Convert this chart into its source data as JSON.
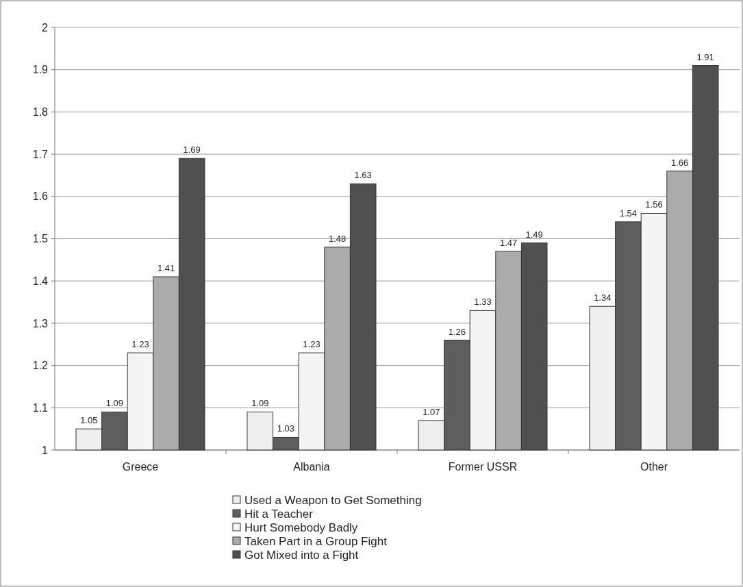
{
  "chart_data": {
    "type": "bar",
    "categories": [
      "Greece",
      "Albania",
      "Former USSR",
      "Other"
    ],
    "series": [
      {
        "name": "Used a Weapon to Get Something",
        "color": "#eeeeee",
        "values": [
          1.05,
          1.09,
          1.07,
          1.34
        ]
      },
      {
        "name": "Hit a Teacher",
        "color": "#5e5e5e",
        "values": [
          1.09,
          1.03,
          1.26,
          1.54
        ]
      },
      {
        "name": "Hurt Somebody Badly",
        "color": "#f4f4f4",
        "values": [
          1.23,
          1.23,
          1.33,
          1.56
        ]
      },
      {
        "name": "Taken Part in a Group Fight",
        "color": "#ababab",
        "values": [
          1.41,
          1.48,
          1.47,
          1.66
        ]
      },
      {
        "name": "Got Mixed into a Fight",
        "color": "#505050",
        "values": [
          1.69,
          1.63,
          1.49,
          1.91
        ]
      }
    ],
    "ylim": [
      1,
      2
    ],
    "yticks": [
      1,
      1.1,
      1.2,
      1.3,
      1.4,
      1.5,
      1.6,
      1.7,
      1.8,
      1.9,
      2
    ],
    "grid": "y",
    "legend": "bottom",
    "data_labels": true
  }
}
